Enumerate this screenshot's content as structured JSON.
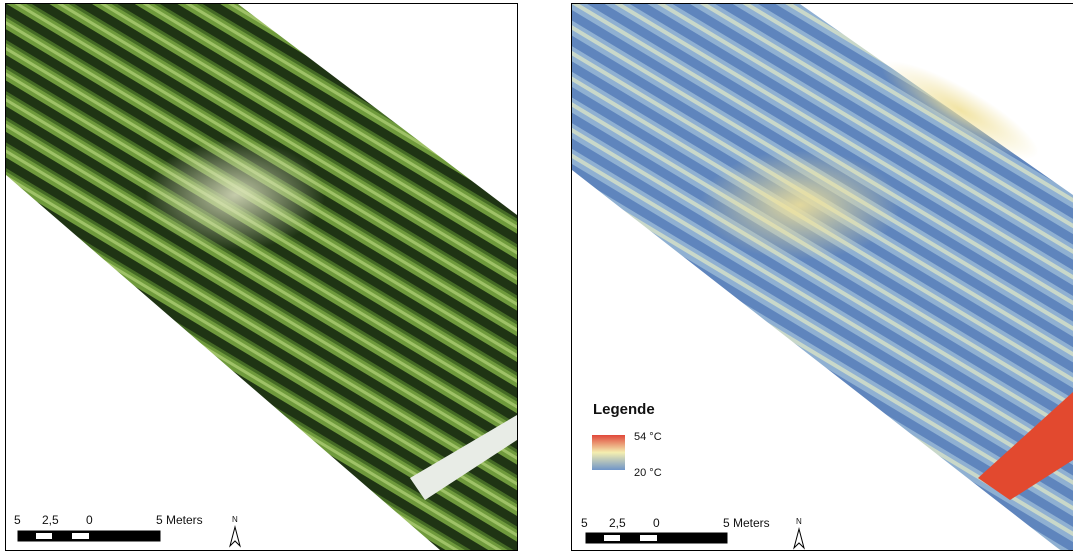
{
  "left_map": {
    "scale_bar": {
      "labels": [
        "5",
        "2,5",
        "0",
        "5 Meters"
      ]
    },
    "north": "N"
  },
  "right_map": {
    "scale_bar": {
      "labels": [
        "5",
        "2,5",
        "0",
        "5 Meters"
      ]
    },
    "north": "N",
    "legend": {
      "title": "Legende",
      "max_label": "54 °C",
      "min_label": "20 °C"
    }
  }
}
